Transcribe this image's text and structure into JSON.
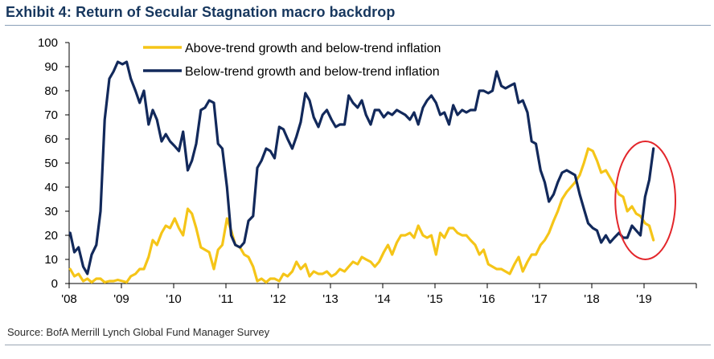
{
  "title": "Exhibit 4: Return of Secular Stagnation macro backdrop",
  "source": "Source: BofA Merrill Lynch Global Fund Manager Survey",
  "colors": {
    "above": "#f5c518",
    "below": "#12295b",
    "highlight": "#e3262b",
    "axis": "#000000"
  },
  "chart_data": {
    "type": "line",
    "title": "Exhibit 4: Return of Secular Stagnation macro backdrop",
    "ylim": [
      0,
      100
    ],
    "xlim": [
      2008,
      2020
    ],
    "y_ticks": [
      "0",
      "10",
      "20",
      "30",
      "40",
      "50",
      "60",
      "70",
      "80",
      "90",
      "100"
    ],
    "x_ticks": [
      {
        "value": 2008,
        "label": "'08"
      },
      {
        "value": 2009,
        "label": "'09"
      },
      {
        "value": 2010,
        "label": "'10"
      },
      {
        "value": 2011,
        "label": "'11"
      },
      {
        "value": 2012,
        "label": "'12"
      },
      {
        "value": 2013,
        "label": "'13"
      },
      {
        "value": 2014,
        "label": "'14"
      },
      {
        "value": 2015,
        "label": "'15"
      },
      {
        "value": 2016,
        "label": "'16"
      },
      {
        "value": 2017,
        "label": "'17"
      },
      {
        "value": 2018,
        "label": "'18"
      },
      {
        "value": 2019,
        "label": "'19"
      }
    ],
    "legend_position": "top-left",
    "annotation": {
      "type": "ellipse",
      "color": "red",
      "x_range": [
        2018.45,
        2019.6
      ],
      "y_range": [
        10,
        59
      ],
      "note": "highlights early 2019 move"
    },
    "series": [
      {
        "name": "Above-trend growth and below-trend inflation",
        "color": "#f5c518",
        "points": [
          [
            2008.02,
            6
          ],
          [
            2008.1,
            3
          ],
          [
            2008.18,
            4
          ],
          [
            2008.27,
            1
          ],
          [
            2008.35,
            2
          ],
          [
            2008.43,
            0.5
          ],
          [
            2008.52,
            2
          ],
          [
            2008.6,
            2
          ],
          [
            2008.68,
            0.5
          ],
          [
            2008.77,
            1
          ],
          [
            2008.85,
            1
          ],
          [
            2008.93,
            1.5
          ],
          [
            2009.02,
            1
          ],
          [
            2009.1,
            0.5
          ],
          [
            2009.18,
            3
          ],
          [
            2009.27,
            4
          ],
          [
            2009.35,
            6
          ],
          [
            2009.43,
            6
          ],
          [
            2009.52,
            11
          ],
          [
            2009.6,
            18
          ],
          [
            2009.68,
            16
          ],
          [
            2009.77,
            21
          ],
          [
            2009.85,
            24
          ],
          [
            2009.93,
            23
          ],
          [
            2010.02,
            27
          ],
          [
            2010.1,
            23
          ],
          [
            2010.18,
            20
          ],
          [
            2010.27,
            31
          ],
          [
            2010.35,
            29
          ],
          [
            2010.43,
            23
          ],
          [
            2010.52,
            15
          ],
          [
            2010.6,
            14
          ],
          [
            2010.68,
            13
          ],
          [
            2010.77,
            6
          ],
          [
            2010.85,
            14
          ],
          [
            2010.93,
            16
          ],
          [
            2011.02,
            27
          ],
          [
            2011.1,
            22
          ],
          [
            2011.18,
            16
          ],
          [
            2011.27,
            15
          ],
          [
            2011.35,
            12
          ],
          [
            2011.43,
            11
          ],
          [
            2011.52,
            7
          ],
          [
            2011.6,
            1
          ],
          [
            2011.68,
            2
          ],
          [
            2011.77,
            0.5
          ],
          [
            2011.85,
            2
          ],
          [
            2011.93,
            2
          ],
          [
            2012.02,
            1
          ],
          [
            2012.1,
            4
          ],
          [
            2012.18,
            3
          ],
          [
            2012.27,
            5
          ],
          [
            2012.35,
            9
          ],
          [
            2012.43,
            6
          ],
          [
            2012.52,
            8
          ],
          [
            2012.6,
            3
          ],
          [
            2012.68,
            5
          ],
          [
            2012.77,
            4
          ],
          [
            2012.85,
            4
          ],
          [
            2012.93,
            5
          ],
          [
            2013.02,
            3
          ],
          [
            2013.1,
            4
          ],
          [
            2013.18,
            6
          ],
          [
            2013.27,
            5
          ],
          [
            2013.35,
            7
          ],
          [
            2013.43,
            9
          ],
          [
            2013.52,
            8
          ],
          [
            2013.6,
            11
          ],
          [
            2013.68,
            10
          ],
          [
            2013.77,
            9
          ],
          [
            2013.85,
            7
          ],
          [
            2013.93,
            9
          ],
          [
            2014.02,
            13
          ],
          [
            2014.1,
            16
          ],
          [
            2014.18,
            12
          ],
          [
            2014.27,
            17
          ],
          [
            2014.35,
            20
          ],
          [
            2014.43,
            20
          ],
          [
            2014.52,
            21
          ],
          [
            2014.6,
            19
          ],
          [
            2014.68,
            24
          ],
          [
            2014.77,
            20
          ],
          [
            2014.85,
            19
          ],
          [
            2014.93,
            20
          ],
          [
            2015.02,
            12
          ],
          [
            2015.1,
            21
          ],
          [
            2015.18,
            19
          ],
          [
            2015.27,
            23
          ],
          [
            2015.35,
            23
          ],
          [
            2015.43,
            21
          ],
          [
            2015.52,
            20
          ],
          [
            2015.6,
            20
          ],
          [
            2015.68,
            18
          ],
          [
            2015.77,
            16
          ],
          [
            2015.85,
            12
          ],
          [
            2015.93,
            14
          ],
          [
            2016.02,
            8
          ],
          [
            2016.1,
            7
          ],
          [
            2016.18,
            6
          ],
          [
            2016.27,
            6
          ],
          [
            2016.35,
            5
          ],
          [
            2016.43,
            4
          ],
          [
            2016.52,
            8
          ],
          [
            2016.6,
            11
          ],
          [
            2016.68,
            5
          ],
          [
            2016.77,
            9
          ],
          [
            2016.85,
            12
          ],
          [
            2016.93,
            12
          ],
          [
            2017.02,
            16
          ],
          [
            2017.1,
            18
          ],
          [
            2017.18,
            21
          ],
          [
            2017.27,
            26
          ],
          [
            2017.35,
            30
          ],
          [
            2017.43,
            35
          ],
          [
            2017.52,
            38
          ],
          [
            2017.6,
            40
          ],
          [
            2017.68,
            42
          ],
          [
            2017.77,
            45
          ],
          [
            2017.85,
            50
          ],
          [
            2017.93,
            56
          ],
          [
            2018.02,
            55
          ],
          [
            2018.1,
            51
          ],
          [
            2018.18,
            46
          ],
          [
            2018.27,
            47
          ],
          [
            2018.35,
            44
          ],
          [
            2018.43,
            41
          ],
          [
            2018.52,
            37
          ],
          [
            2018.6,
            36
          ],
          [
            2018.68,
            30
          ],
          [
            2018.77,
            32
          ],
          [
            2018.85,
            29
          ],
          [
            2018.93,
            28
          ],
          [
            2019.02,
            25
          ],
          [
            2019.1,
            24
          ],
          [
            2019.18,
            18
          ]
        ]
      },
      {
        "name": "Below-trend growth and below-trend inflation",
        "color": "#12295b",
        "points": [
          [
            2008.02,
            21
          ],
          [
            2008.1,
            13
          ],
          [
            2008.18,
            15
          ],
          [
            2008.27,
            7
          ],
          [
            2008.35,
            4
          ],
          [
            2008.43,
            12
          ],
          [
            2008.52,
            16
          ],
          [
            2008.6,
            30
          ],
          [
            2008.68,
            68
          ],
          [
            2008.77,
            85
          ],
          [
            2008.85,
            88
          ],
          [
            2008.93,
            92
          ],
          [
            2009.02,
            91
          ],
          [
            2009.1,
            92
          ],
          [
            2009.18,
            85
          ],
          [
            2009.27,
            80
          ],
          [
            2009.35,
            75
          ],
          [
            2009.43,
            80
          ],
          [
            2009.52,
            66
          ],
          [
            2009.6,
            72
          ],
          [
            2009.68,
            68
          ],
          [
            2009.77,
            59
          ],
          [
            2009.85,
            62
          ],
          [
            2009.93,
            59
          ],
          [
            2010.02,
            57
          ],
          [
            2010.1,
            55
          ],
          [
            2010.18,
            63
          ],
          [
            2010.27,
            47
          ],
          [
            2010.35,
            51
          ],
          [
            2010.43,
            58
          ],
          [
            2010.52,
            72
          ],
          [
            2010.6,
            73
          ],
          [
            2010.68,
            76
          ],
          [
            2010.77,
            75
          ],
          [
            2010.85,
            58
          ],
          [
            2010.93,
            56
          ],
          [
            2011.02,
            40
          ],
          [
            2011.1,
            20
          ],
          [
            2011.18,
            16
          ],
          [
            2011.27,
            15
          ],
          [
            2011.35,
            17
          ],
          [
            2011.43,
            26
          ],
          [
            2011.52,
            28
          ],
          [
            2011.6,
            48
          ],
          [
            2011.68,
            51
          ],
          [
            2011.77,
            56
          ],
          [
            2011.85,
            55
          ],
          [
            2011.93,
            52
          ],
          [
            2012.02,
            65
          ],
          [
            2012.1,
            64
          ],
          [
            2012.18,
            60
          ],
          [
            2012.27,
            56
          ],
          [
            2012.35,
            61
          ],
          [
            2012.43,
            67
          ],
          [
            2012.52,
            79
          ],
          [
            2012.6,
            76
          ],
          [
            2012.68,
            69
          ],
          [
            2012.77,
            65
          ],
          [
            2012.85,
            70
          ],
          [
            2012.93,
            72
          ],
          [
            2013.02,
            68
          ],
          [
            2013.1,
            65
          ],
          [
            2013.18,
            66
          ],
          [
            2013.27,
            66
          ],
          [
            2013.35,
            78
          ],
          [
            2013.43,
            75
          ],
          [
            2013.52,
            73
          ],
          [
            2013.6,
            76
          ],
          [
            2013.68,
            70
          ],
          [
            2013.77,
            66
          ],
          [
            2013.85,
            72
          ],
          [
            2013.93,
            72
          ],
          [
            2014.02,
            69
          ],
          [
            2014.1,
            71
          ],
          [
            2014.18,
            70
          ],
          [
            2014.27,
            72
          ],
          [
            2014.35,
            71
          ],
          [
            2014.43,
            70
          ],
          [
            2014.52,
            68
          ],
          [
            2014.6,
            71
          ],
          [
            2014.68,
            66
          ],
          [
            2014.77,
            73
          ],
          [
            2014.85,
            76
          ],
          [
            2014.93,
            78
          ],
          [
            2015.02,
            75
          ],
          [
            2015.1,
            70
          ],
          [
            2015.18,
            71
          ],
          [
            2015.27,
            66
          ],
          [
            2015.35,
            74
          ],
          [
            2015.43,
            70
          ],
          [
            2015.52,
            72
          ],
          [
            2015.6,
            71
          ],
          [
            2015.68,
            72
          ],
          [
            2015.77,
            72
          ],
          [
            2015.85,
            80
          ],
          [
            2015.93,
            80
          ],
          [
            2016.02,
            79
          ],
          [
            2016.1,
            80
          ],
          [
            2016.18,
            88
          ],
          [
            2016.27,
            82
          ],
          [
            2016.35,
            81
          ],
          [
            2016.43,
            82
          ],
          [
            2016.52,
            83
          ],
          [
            2016.6,
            75
          ],
          [
            2016.68,
            76
          ],
          [
            2016.77,
            71
          ],
          [
            2016.85,
            59
          ],
          [
            2016.93,
            58
          ],
          [
            2017.02,
            47
          ],
          [
            2017.1,
            42
          ],
          [
            2017.18,
            34
          ],
          [
            2017.27,
            37
          ],
          [
            2017.35,
            42
          ],
          [
            2017.43,
            46
          ],
          [
            2017.52,
            47
          ],
          [
            2017.6,
            46
          ],
          [
            2017.68,
            45
          ],
          [
            2017.77,
            37
          ],
          [
            2017.85,
            31
          ],
          [
            2017.93,
            25
          ],
          [
            2018.02,
            23
          ],
          [
            2018.1,
            22
          ],
          [
            2018.18,
            17
          ],
          [
            2018.27,
            20
          ],
          [
            2018.35,
            17
          ],
          [
            2018.43,
            19
          ],
          [
            2018.52,
            21
          ],
          [
            2018.6,
            19
          ],
          [
            2018.68,
            19
          ],
          [
            2018.77,
            24
          ],
          [
            2018.85,
            22
          ],
          [
            2018.93,
            20
          ],
          [
            2019.02,
            36
          ],
          [
            2019.1,
            43
          ],
          [
            2019.18,
            56
          ]
        ]
      }
    ]
  }
}
